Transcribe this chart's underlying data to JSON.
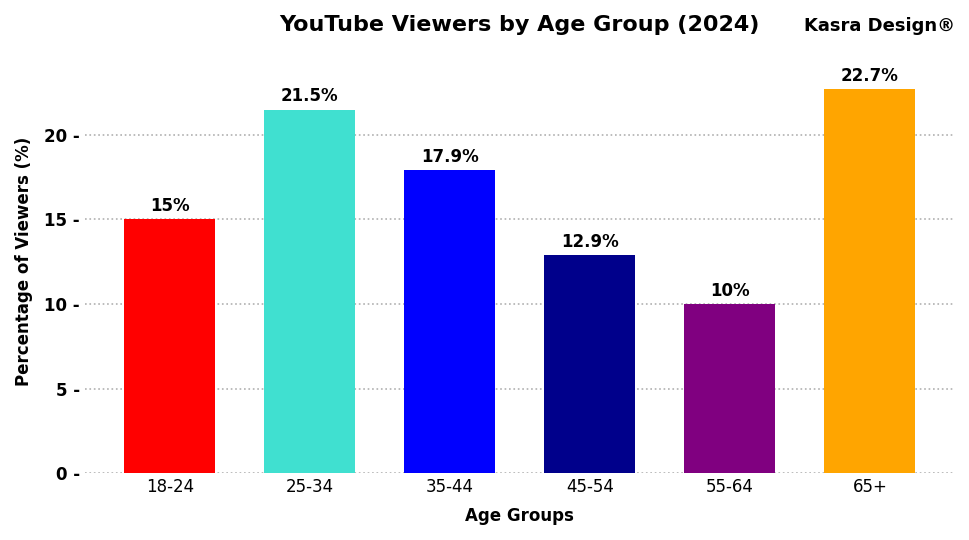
{
  "categories": [
    "18-24",
    "25-34",
    "35-44",
    "45-54",
    "55-64",
    "65+"
  ],
  "values": [
    15.0,
    21.5,
    17.9,
    12.9,
    10.0,
    22.7
  ],
  "labels": [
    "15%",
    "21.5%",
    "17.9%",
    "12.9%",
    "10%",
    "22.7%"
  ],
  "bar_colors": [
    "#ff0000",
    "#40e0d0",
    "#0000ff",
    "#00008b",
    "#800080",
    "#ffa500"
  ],
  "title": "YouTube Viewers by Age Group (2024)",
  "xlabel": "Age Groups",
  "ylabel": "Percentage of Viewers (%)",
  "ylim": [
    0,
    25
  ],
  "yticks": [
    0,
    5,
    10,
    15,
    20
  ],
  "ytick_labels": [
    "0 -",
    "5 -",
    "10 -",
    "15 -",
    "20 -"
  ],
  "watermark": "Kasra Design®",
  "background_color": "#ffffff",
  "grid_color": "#b0b0b0",
  "title_fontsize": 16,
  "label_fontsize": 12,
  "tick_fontsize": 12,
  "bar_label_fontsize": 12,
  "bar_width": 0.65
}
